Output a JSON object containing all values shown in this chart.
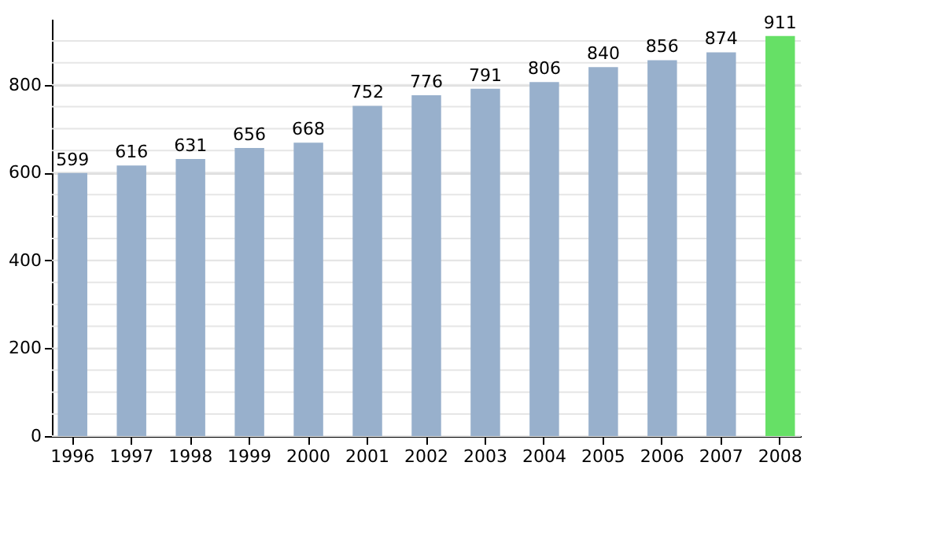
{
  "chart_data": {
    "type": "bar",
    "categories": [
      "1996",
      "1997",
      "1998",
      "1999",
      "2000",
      "2001",
      "2002",
      "2003",
      "2004",
      "2005",
      "2006",
      "2007",
      "2008"
    ],
    "values": [
      599,
      616,
      631,
      656,
      668,
      752,
      776,
      791,
      806,
      840,
      856,
      874,
      911
    ],
    "colors": [
      "#98b0cc",
      "#98b0cc",
      "#98b0cc",
      "#98b0cc",
      "#98b0cc",
      "#98b0cc",
      "#98b0cc",
      "#98b0cc",
      "#98b0cc",
      "#98b0cc",
      "#98b0cc",
      "#98b0cc",
      "#66e066"
    ],
    "ylim": [
      0,
      950
    ],
    "yticks": [
      0,
      {
        "value": 50,
        "label": null
      },
      {
        "value": 100,
        "label": null
      },
      {
        "value": 150,
        "label": null
      },
      200,
      {
        "value": 250,
        "label": null
      },
      {
        "value": 300,
        "label": null
      },
      {
        "value": 350,
        "label": null
      },
      400,
      {
        "value": 450,
        "label": null
      },
      {
        "value": 500,
        "label": null
      },
      {
        "value": 550,
        "label": null
      },
      600,
      {
        "value": 650,
        "label": null
      },
      {
        "value": 700,
        "label": null
      },
      {
        "value": 750,
        "label": null
      },
      800,
      {
        "value": 850,
        "label": null
      },
      {
        "value": 900,
        "label": null
      }
    ],
    "grid": "y",
    "data_labels": true
  }
}
